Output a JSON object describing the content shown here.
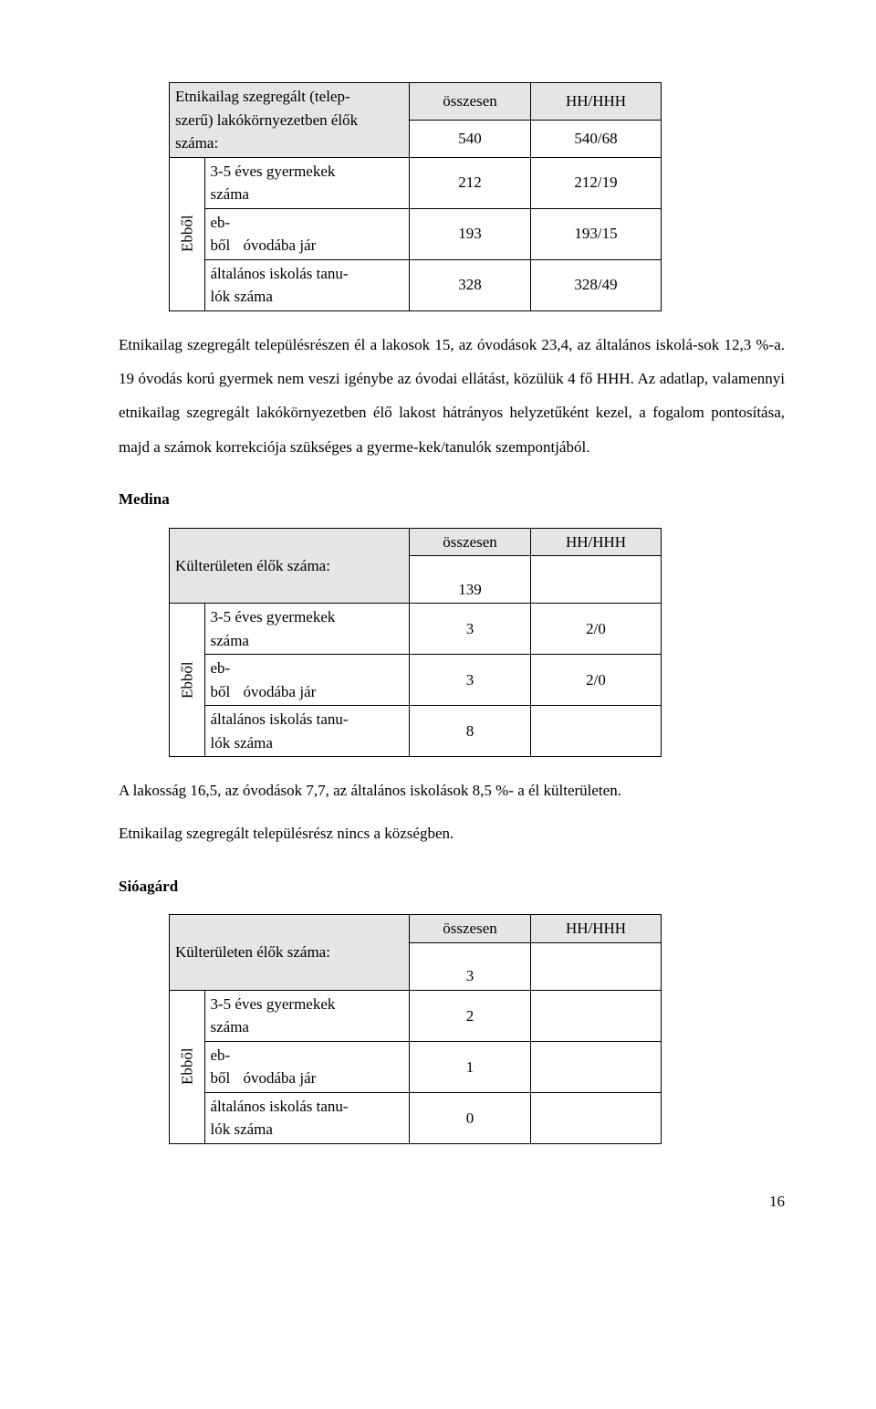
{
  "columns": {
    "osszesen": "összesen",
    "hhhhh": "HH/HHH"
  },
  "table1": {
    "title": "Etnikailag szegregált (telep-\nszerű) lakókörnyezetben élők\nszáma:",
    "total_osszesen": "540",
    "total_hh": "540/68",
    "side_label": "Ebből",
    "row_a": {
      "label": "3-5 éves gyermekek\nszáma",
      "v1": "212",
      "v2": "212/19"
    },
    "row_b": {
      "label1": "eb-",
      "label2": "ből",
      "label3": "óvodába jár",
      "v1": "193",
      "v2": "193/15"
    },
    "row_c": {
      "label": "általános iskolás tanu-\nlók száma",
      "v1": "328",
      "v2": "328/49"
    }
  },
  "para1": "Etnikailag szegregált  településrészen él a lakosok 15, az óvodások 23,4, az általános iskolá-sok 12,3 %-a. 19 óvodás korú gyermek nem veszi igénybe az óvodai ellátást, közülük 4 fő HHH. Az adatlap, valamennyi etnikailag szegregált lakókörnyezetben élő lakost hátrányos helyzetűként kezel, a fogalom pontosítása, majd a számok korrekciója szükséges a gyerme-kek/tanulók szempontjából.",
  "medina": {
    "heading": "Medina",
    "title": "Külterületen élők száma:",
    "total_osszesen": "139",
    "total_hh": "",
    "side_label": "Ebből",
    "row_a": {
      "label": "3-5 éves gyermekek\nszáma",
      "v1": "3",
      "v2": "2/0"
    },
    "row_b": {
      "label1": "eb-",
      "label2": "ből",
      "label3": "óvodába jár",
      "v1": "3",
      "v2": "2/0"
    },
    "row_c": {
      "label": "általános iskolás tanu-\nlók száma",
      "v1": "8",
      "v2": ""
    },
    "para": "A lakosság 16,5, az óvodások 7,7, az általános iskolások 8,5 %- a él külterületen.",
    "para2": "Etnikailag szegregált településrész nincs a községben."
  },
  "sioagard": {
    "heading": "Sióagárd",
    "title": "Külterületen élők száma:",
    "total_osszesen": "3",
    "total_hh": "",
    "side_label": "Ebből",
    "row_a": {
      "label": "3-5 éves gyermekek\nszáma",
      "v1": "2",
      "v2": ""
    },
    "row_b": {
      "label1": "eb-",
      "label2": "ből",
      "label3": "óvodába jár",
      "v1": "1",
      "v2": ""
    },
    "row_c": {
      "label": "általános iskolás tanu-\nlók száma",
      "v1": "0",
      "v2": ""
    }
  },
  "page_number": "16"
}
